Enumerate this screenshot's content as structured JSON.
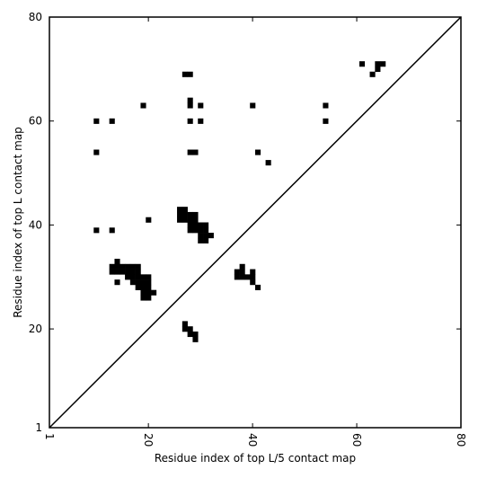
{
  "chart_data": {
    "type": "heatmap",
    "title": "",
    "xlabel": "Residue index of top L/5 contact map",
    "ylabel": "Residue index of top L contact map",
    "xlim": [
      1,
      80
    ],
    "ylim": [
      1,
      80
    ],
    "x_ticks": [
      1,
      20,
      40,
      60,
      80
    ],
    "y_ticks": [
      1,
      20,
      40,
      60,
      80
    ],
    "x_tick_labels": [
      "1",
      "20",
      "40",
      "60",
      "80"
    ],
    "y_tick_labels": [
      "1",
      "20",
      "40",
      "60",
      "80"
    ],
    "grid": false,
    "diagonal_line": true,
    "cell_color": "#000000",
    "background_color": "#ffffff",
    "upper_left_cells": [
      [
        27,
        69
      ],
      [
        28,
        69
      ],
      [
        19,
        63
      ],
      [
        28,
        64
      ],
      [
        28,
        63
      ],
      [
        30,
        63
      ],
      [
        40,
        63
      ],
      [
        54,
        63
      ],
      [
        10,
        60
      ],
      [
        13,
        60
      ],
      [
        28,
        60
      ],
      [
        30,
        60
      ],
      [
        54,
        60
      ],
      [
        10,
        54
      ],
      [
        28,
        54
      ],
      [
        29,
        54
      ],
      [
        41,
        54
      ],
      [
        43,
        52
      ],
      [
        26,
        43
      ],
      [
        27,
        43
      ],
      [
        26,
        42
      ],
      [
        27,
        42
      ],
      [
        28,
        42
      ],
      [
        29,
        42
      ],
      [
        26,
        41
      ],
      [
        27,
        41
      ],
      [
        28,
        41
      ],
      [
        29,
        41
      ],
      [
        20,
        41
      ],
      [
        28,
        40
      ],
      [
        29,
        40
      ],
      [
        30,
        40
      ],
      [
        31,
        40
      ],
      [
        10,
        39
      ],
      [
        13,
        39
      ],
      [
        28,
        39
      ],
      [
        29,
        39
      ],
      [
        30,
        39
      ],
      [
        31,
        39
      ],
      [
        30,
        38
      ],
      [
        31,
        38
      ],
      [
        32,
        38
      ],
      [
        30,
        37
      ],
      [
        31,
        37
      ],
      [
        61,
        71
      ],
      [
        64,
        71
      ],
      [
        65,
        71
      ],
      [
        64,
        70
      ],
      [
        63,
        69
      ]
    ],
    "lower_right_cells": [
      [
        14,
        33
      ],
      [
        13,
        32
      ],
      [
        14,
        32
      ],
      [
        15,
        32
      ],
      [
        16,
        32
      ],
      [
        17,
        32
      ],
      [
        18,
        32
      ],
      [
        38,
        32
      ],
      [
        13,
        31
      ],
      [
        14,
        31
      ],
      [
        15,
        31
      ],
      [
        16,
        31
      ],
      [
        17,
        31
      ],
      [
        18,
        31
      ],
      [
        37,
        31
      ],
      [
        38,
        31
      ],
      [
        40,
        31
      ],
      [
        16,
        30
      ],
      [
        17,
        30
      ],
      [
        18,
        30
      ],
      [
        19,
        30
      ],
      [
        20,
        30
      ],
      [
        37,
        30
      ],
      [
        38,
        30
      ],
      [
        39,
        30
      ],
      [
        40,
        30
      ],
      [
        17,
        29
      ],
      [
        18,
        29
      ],
      [
        19,
        29
      ],
      [
        20,
        29
      ],
      [
        14,
        29
      ],
      [
        40,
        29
      ],
      [
        18,
        28
      ],
      [
        19,
        28
      ],
      [
        20,
        28
      ],
      [
        41,
        28
      ],
      [
        19,
        27
      ],
      [
        20,
        27
      ],
      [
        21,
        27
      ],
      [
        19,
        26
      ],
      [
        20,
        26
      ],
      [
        27,
        21
      ],
      [
        27,
        20
      ],
      [
        28,
        20
      ],
      [
        28,
        19
      ],
      [
        29,
        19
      ],
      [
        29,
        18
      ]
    ]
  }
}
